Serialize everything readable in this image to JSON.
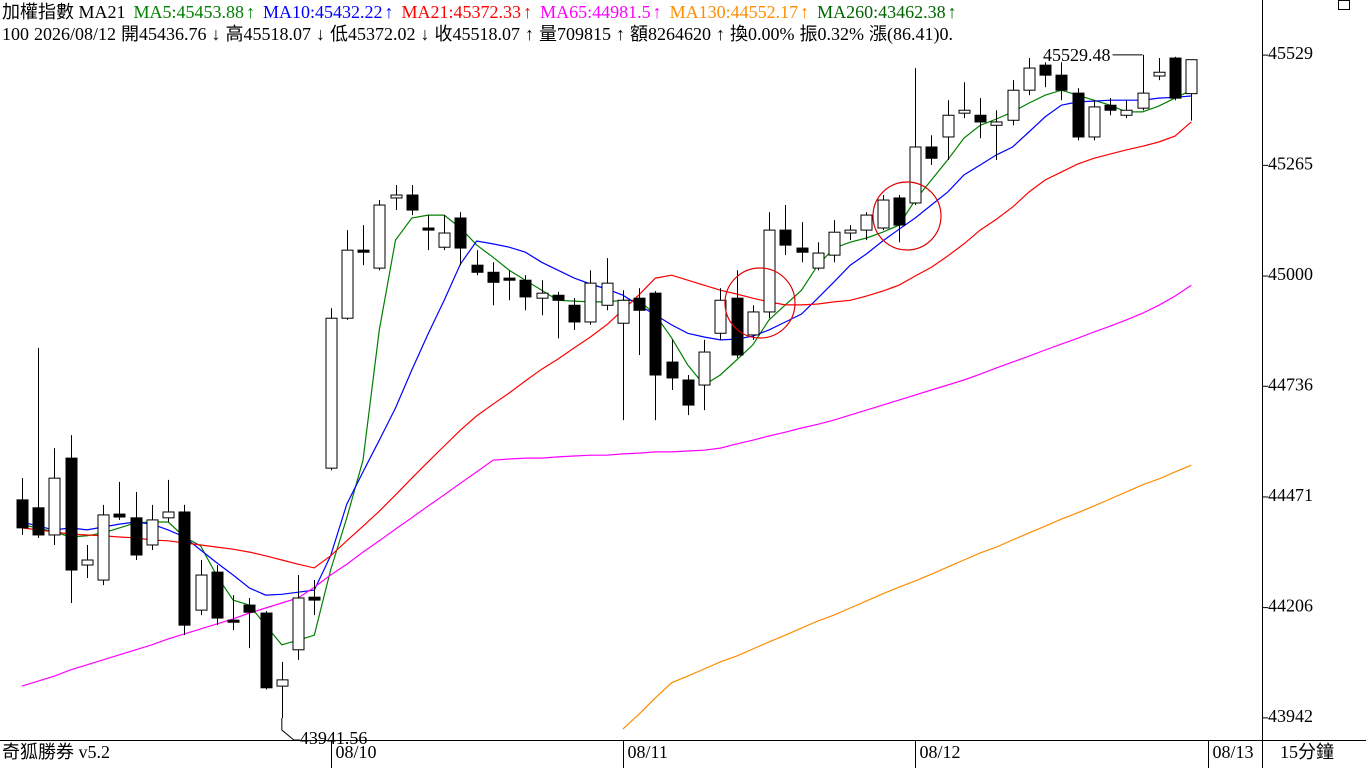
{
  "chart_data": {
    "type": "candlestick",
    "title": "加權指數 MA21",
    "ylim": [
      43889,
      45661
    ],
    "yticks": [
      45529,
      45265,
      45000,
      44736,
      44471,
      44206,
      43942
    ],
    "xticks": [
      {
        "value": 19,
        "label": "08/10"
      },
      {
        "value": 37,
        "label": "08/11"
      },
      {
        "value": 55,
        "label": "08/12"
      },
      {
        "value": 73,
        "label": "08/13"
      }
    ],
    "open": [
      44464,
      44445,
      44380,
      44564,
      44308,
      44272,
      44430,
      44421,
      44356,
      44421,
      44435,
      44200,
      44291,
      44176,
      44212,
      44193,
      44018,
      44105,
      44231,
      44540,
      44899,
      45062,
      45019,
      45187,
      45194,
      45115,
      45069,
      45139,
      45026,
      45009,
      44995,
      44990,
      44947,
      44954,
      44930,
      44890,
      44930,
      44887,
      44947,
      44959,
      44794,
      44751,
      44739,
      44863,
      44947,
      44859,
      44914,
      45110,
      45067,
      45019,
      45050,
      45103,
      45110,
      45115,
      45187,
      45175,
      45309,
      45333,
      45390,
      45385,
      45361,
      45373,
      45445,
      45505,
      45481,
      45438,
      45333,
      45409,
      45385,
      45402,
      45479,
      45522,
      45436.76
    ],
    "high": [
      44516,
      44828,
      44588,
      44619,
      44356,
      44452,
      44507,
      44483,
      44452,
      44512,
      44452,
      44320,
      44308,
      44236,
      44229,
      44198,
      44076,
      44284,
      44272,
      44923,
      45110,
      45122,
      45182,
      45218,
      45218,
      45146,
      45146,
      45153,
      45062,
      45033,
      45014,
      45002,
      44990,
      44962,
      44947,
      45014,
      45043,
      44966,
      44971,
      44964,
      44847,
      44763,
      44847,
      44971,
      45014,
      44930,
      45153,
      45170,
      45129,
      45081,
      45134,
      45122,
      45153,
      45194,
      45194,
      45498,
      45337,
      45421,
      45464,
      45426,
      45397,
      45469,
      45522,
      45512,
      45512,
      45450,
      45421,
      45426,
      45421,
      45529.48,
      45522,
      45525,
      45518.07
    ],
    "low": [
      44380,
      44373,
      44356,
      44217,
      44277,
      44260,
      44416,
      44320,
      44344,
      44411,
      44140,
      44188,
      44164,
      44152,
      44109,
      44010,
      43941.56,
      44081,
      44188,
      44535,
      44895,
      45026,
      45014,
      45158,
      45146,
      45062,
      45062,
      45026,
      45002,
      44930,
      44942,
      44918,
      44906,
      44851,
      44871,
      44883,
      44918,
      44655,
      44811,
      44655,
      44727,
      44667,
      44679,
      44847,
      44804,
      44847,
      44899,
      45050,
      45033,
      45014,
      45033,
      45086,
      45086,
      45110,
      45081,
      45170,
      45266,
      45278,
      45378,
      45330,
      45278,
      45361,
      45433,
      45452,
      45421,
      45325,
      45325,
      45385,
      45378,
      45397,
      45469,
      45421,
      45372.02
    ],
    "close": [
      44397,
      44380,
      44516,
      44296,
      44320,
      44428,
      44423,
      44332,
      44416,
      44435,
      44164,
      44284,
      44181,
      44171,
      44195,
      44014,
      44033,
      44229,
      44224,
      44899,
      45062,
      45057,
      45170,
      45194,
      45158,
      45110,
      45103,
      45067,
      45009,
      44985,
      44990,
      44950,
      44959,
      44942,
      44890,
      44983,
      44983,
      44942,
      44918,
      44763,
      44756,
      44691,
      44818,
      44942,
      44811,
      44914,
      45110,
      45074,
      45057,
      45055,
      45105,
      45110,
      45146,
      45182,
      45122,
      45309,
      45282,
      45385,
      45397,
      45369,
      45369,
      45445,
      45498,
      45481,
      45445,
      45333,
      45405,
      45397,
      45397,
      45438,
      45488,
      45426,
      45518.07
    ],
    "series": [
      {
        "name": "MA5:45453.88",
        "arrow": "↑",
        "color": "#008000",
        "values": [
          44404,
          44397,
          44387,
          44375,
          44378,
          44385,
          44397,
          44409,
          44411,
          44411,
          44375,
          44354,
          44282,
          44224,
          44212,
          44164,
          44117,
          44128,
          44140,
          44296,
          44421,
          44559,
          44871,
          45086,
          45139,
          45146,
          45146,
          45115,
          45074,
          45045,
          45014,
          44990,
          44966,
          44942,
          44940,
          44938,
          44938,
          44942,
          44942,
          44907,
          44852,
          44787,
          44739,
          44763,
          44799,
          44835,
          44895,
          44931,
          44966,
          45026,
          45067,
          45081,
          45091,
          45105,
          45122,
          45182,
          45230,
          45278,
          45330,
          45361,
          45376,
          45393,
          45414,
          45433,
          45445,
          45433,
          45421,
          45409,
          45393,
          45393,
          45407,
          45426,
          45445
        ]
      },
      {
        "name": "MA10:45432.22",
        "arrow": "↑",
        "color": "#0000ff",
        "values": [
          44411,
          44401,
          44392,
          44397,
          44392,
          44399,
          44406,
          44411,
          44406,
          44392,
          44375,
          44344,
          44313,
          44284,
          44253,
          44236,
          44238,
          44243,
          44248,
          44330,
          44454,
          44531,
          44607,
          44684,
          44775,
          44861,
          44942,
          45029,
          45084,
          45077,
          45069,
          45057,
          45033,
          45014,
          44995,
          44981,
          44969,
          44954,
          44930,
          44907,
          44883,
          44863,
          44854,
          44847,
          44849,
          44856,
          44871,
          44890,
          44909,
          44947,
          44986,
          45026,
          45053,
          45084,
          45112,
          45139,
          45170,
          45201,
          45242,
          45266,
          45290,
          45309,
          45345,
          45381,
          45409,
          45417,
          45419,
          45421,
          45421,
          45421,
          45426,
          45428,
          45431
        ]
      },
      {
        "name": "MA21:45372.33",
        "arrow": "↑",
        "color": "#ff0000",
        "values": [
          44397,
          44392,
          44387,
          44382,
          44380,
          44378,
          44375,
          44373,
          44368,
          44366,
          44361,
          44356,
          44351,
          44346,
          44339,
          44330,
          44320,
          44310,
          44301,
          44330,
          44366,
          44401,
          44437,
          44476,
          44516,
          44555,
          44593,
          44631,
          44665,
          44693,
          44720,
          44749,
          44777,
          44801,
          44828,
          44854,
          44883,
          44919,
          44955,
          44995,
          45002,
          44990,
          44978,
          44966,
          44957,
          44947,
          44938,
          44931,
          44931,
          44933,
          44938,
          44942,
          44952,
          44964,
          44978,
          45000,
          45021,
          45048,
          45077,
          45110,
          45136,
          45165,
          45201,
          45230,
          45249,
          45268,
          45282,
          45292,
          45302,
          45311,
          45321,
          45335,
          45369
        ]
      },
      {
        "name": "MA65:44981.5",
        "arrow": "↑",
        "color": "#ff00ff",
        "values": [
          44018,
          44030,
          44042,
          44057,
          44069,
          44081,
          44093,
          44105,
          44117,
          44131,
          44143,
          44155,
          44167,
          44179,
          44193,
          44205,
          44217,
          44229,
          44255,
          44284,
          44310,
          44339,
          44366,
          44394,
          44421,
          44449,
          44476,
          44504,
          44531,
          44559,
          44562,
          44564,
          44564,
          44567,
          44569,
          44571,
          44571,
          44574,
          44576,
          44579,
          44579,
          44581,
          44583,
          44588,
          44598,
          44607,
          44617,
          44626,
          44636,
          44645,
          44655,
          44667,
          44679,
          44691,
          44703,
          44715,
          44727,
          44739,
          44751,
          44765,
          44780,
          44794,
          44808,
          44823,
          44837,
          44851,
          44866,
          44880,
          44895,
          44911,
          44930,
          44952,
          44978
        ]
      },
      {
        "name": "MA130:44552.17",
        "arrow": "↑",
        "color": "#ff8c00",
        "values": [
          null,
          null,
          null,
          null,
          null,
          null,
          null,
          null,
          null,
          null,
          null,
          null,
          null,
          null,
          null,
          null,
          null,
          null,
          null,
          null,
          null,
          null,
          null,
          null,
          null,
          null,
          null,
          null,
          null,
          null,
          null,
          null,
          null,
          null,
          null,
          null,
          null,
          43915,
          43951,
          43990,
          44026,
          44042,
          44059,
          44076,
          44090,
          44107,
          44124,
          44140,
          44157,
          44174,
          44188,
          44205,
          44222,
          44239,
          44255,
          44270,
          44286,
          44303,
          44320,
          44337,
          44351,
          44368,
          44385,
          44401,
          44418,
          44433,
          44449,
          44466,
          44483,
          44500,
          44514,
          44531,
          44547
        ]
      },
      {
        "name": "MA260:43462.38",
        "arrow": "↑",
        "color": "#006400",
        "values": [
          null,
          null,
          null,
          null,
          null,
          null,
          null,
          null,
          null,
          null,
          null,
          null,
          null,
          null,
          null,
          null,
          null,
          null,
          null,
          null,
          null,
          null,
          null,
          null,
          null,
          null,
          null,
          null,
          null,
          null,
          null,
          null,
          null,
          null,
          null,
          null,
          null,
          null,
          null,
          null,
          null,
          null,
          null,
          null,
          null,
          null,
          null,
          null,
          null,
          null,
          null,
          null,
          null,
          null,
          null,
          null,
          null,
          null,
          null,
          null,
          null,
          null,
          null,
          null,
          null,
          null,
          null,
          null,
          null,
          null,
          null,
          null,
          null
        ]
      }
    ],
    "quote": [
      "100",
      "2026/08/12",
      "開45436.76",
      "↓",
      "高45518.07",
      "↓",
      "低45372.02",
      "↓",
      "收45518.07",
      "↑",
      "量709815",
      "↑",
      "額8264620",
      "↑",
      "換0.00%",
      "振0.32%",
      "漲(86.41)0."
    ],
    "footer_left": "奇狐勝券 v5.2",
    "period": "15分鐘"
  }
}
